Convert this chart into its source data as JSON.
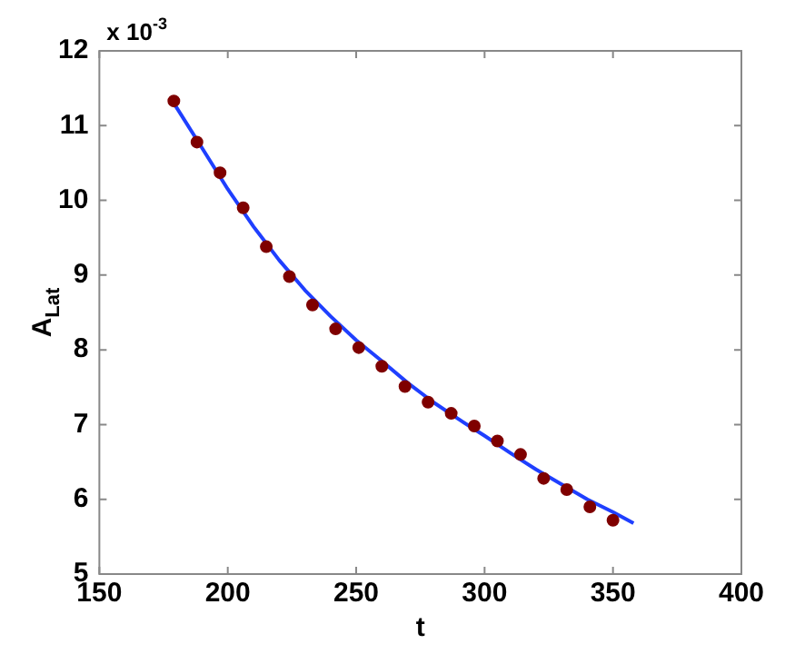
{
  "chart_data": {
    "type": "scatter",
    "xlabel": "t",
    "ylabel": "A$_{Lat}$",
    "annotations": [
      "x 10$^{-3}$"
    ],
    "xlim": [
      150,
      400
    ],
    "xticks": [
      150,
      200,
      250,
      300,
      350,
      400
    ],
    "ylim": [
      5,
      12
    ],
    "yticks": [
      5,
      6,
      7,
      8,
      9,
      10,
      11,
      12
    ],
    "marker": "circle",
    "series": [
      {
        "color": "#7f0000",
        "x": [
          179,
          188,
          197,
          206,
          215,
          224,
          233,
          242,
          251,
          260,
          269,
          278,
          287,
          296,
          305,
          314,
          323,
          332,
          341,
          350
        ],
        "values": [
          11.33,
          10.78,
          10.37,
          9.9,
          9.38,
          8.98,
          8.6,
          8.28,
          8.03,
          7.78,
          7.51,
          7.3,
          7.15,
          6.98,
          6.78,
          6.6,
          6.28,
          6.13,
          5.9,
          5.72
        ]
      },
      {
        "type": "line",
        "color": "#1f3fff",
        "marker": "none",
        "x": [
          179,
          190,
          200,
          210,
          220,
          230,
          240,
          250,
          260,
          270,
          280,
          290,
          300,
          310,
          320,
          330,
          340,
          350,
          358
        ],
        "values": [
          11.3,
          10.7,
          10.15,
          9.65,
          9.2,
          8.8,
          8.45,
          8.13,
          7.85,
          7.56,
          7.3,
          7.07,
          6.85,
          6.62,
          6.4,
          6.2,
          6.0,
          5.83,
          5.68
        ]
      }
    ]
  }
}
